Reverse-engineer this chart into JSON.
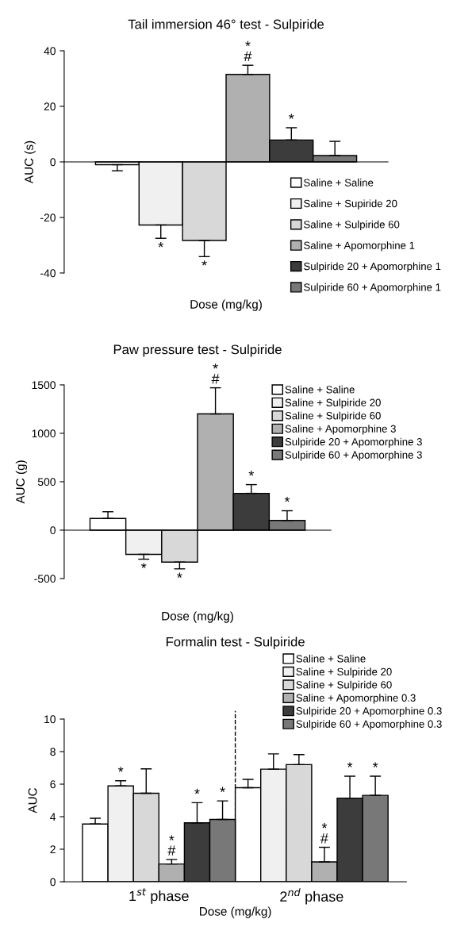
{
  "chart_data": [
    {
      "type": "bar",
      "title": "Tail immersion 46° test - Sulpiride",
      "xlabel": "Dose (mg/kg)",
      "ylabel": "AUC (s)",
      "categories": [
        null
      ],
      "ylim": [
        -40,
        40
      ],
      "yticks": [
        -40,
        -20,
        0,
        20,
        40
      ],
      "legend": "right",
      "series": [
        {
          "name": "Saline + Saline",
          "color": "#ffffff",
          "values": [
            -1.0
          ],
          "errors": [
            [
              -3.2,
              -1.0
            ]
          ],
          "value_labels": [
            null
          ]
        },
        {
          "name": "Saline + Supiride 20",
          "color": "#f0f0f0",
          "values": [
            -22.7
          ],
          "errors": [
            [
              -27.5,
              -22.7
            ]
          ],
          "value_labels": [
            "*"
          ]
        },
        {
          "name": "Saline + Sulpiride 60",
          "color": "#d8d8d8",
          "values": [
            -28.3
          ],
          "errors": [
            [
              -34.1,
              -28.3
            ]
          ],
          "value_labels": [
            "*"
          ]
        },
        {
          "name": "Saline + Apomorphine 1",
          "color": "#b0b0b0",
          "values": [
            31.5
          ],
          "errors": [
            [
              31.5,
              34.8
            ]
          ],
          "value_labels": [
            "*\n#"
          ]
        },
        {
          "name": "Sulpiride 20 + Apomorphine 1",
          "color": "#3c3c3c",
          "values": [
            7.9
          ],
          "errors": [
            [
              7.9,
              12.3
            ]
          ],
          "value_labels": [
            "*"
          ]
        },
        {
          "name": "Sulpiride 60 + Apomorphine 1",
          "color": "#787878",
          "values": [
            2.3
          ],
          "errors": [
            [
              2.3,
              7.4
            ]
          ],
          "value_labels": [
            null
          ]
        }
      ]
    },
    {
      "type": "bar",
      "title": "Paw pressure test - Sulpiride",
      "xlabel": "Dose (mg/kg)",
      "ylabel": "AUC (g)",
      "categories": [
        null
      ],
      "ylim": [
        -500,
        1500
      ],
      "yticks": [
        -500,
        0,
        500,
        1000,
        1500
      ],
      "legend": "top right",
      "series": [
        {
          "name": "Saline + Saline",
          "color": "#ffffff",
          "values": [
            120
          ],
          "errors": [
            [
              120,
              190
            ]
          ],
          "value_labels": [
            null
          ]
        },
        {
          "name": "Saline + Sulpiride 20",
          "color": "#f0f0f0",
          "values": [
            -250
          ],
          "errors": [
            [
              -300,
              -250
            ]
          ],
          "value_labels": [
            "*"
          ]
        },
        {
          "name": "Saline + Sulpiride 60",
          "color": "#d8d8d8",
          "values": [
            -330
          ],
          "errors": [
            [
              -400,
              -330
            ]
          ],
          "value_labels": [
            "*"
          ]
        },
        {
          "name": "Saline + Apomorphine 3",
          "color": "#b0b0b0",
          "values": [
            1200
          ],
          "errors": [
            [
              1200,
              1470
            ]
          ],
          "value_labels": [
            "*\n#"
          ]
        },
        {
          "name": "Sulpiride 20 + Apomorphine 3",
          "color": "#3c3c3c",
          "values": [
            380
          ],
          "errors": [
            [
              380,
              470
            ]
          ],
          "value_labels": [
            "*"
          ]
        },
        {
          "name": "Sulpiride 60 + Apomorphine 3",
          "color": "#787878",
          "values": [
            100
          ],
          "errors": [
            [
              100,
              200
            ]
          ],
          "value_labels": [
            "*"
          ]
        }
      ]
    },
    {
      "type": "bar",
      "title": "Formalin test - Sulpiride",
      "xlabel": "Dose (mg/kg)",
      "ylabel": "AUC",
      "categories": [
        "1$^{st}$ phase",
        "2$^{nd}$ phase"
      ],
      "ylim": [
        0,
        10
      ],
      "yticks": [
        0,
        2,
        4,
        6,
        8,
        10
      ],
      "legend": "top right",
      "series": [
        {
          "name": "Saline + Saline",
          "color": "#ffffff",
          "values": [
            3.55,
            5.78
          ],
          "errors": [
            [
              3.55,
              3.9
            ],
            [
              5.78,
              6.29
            ]
          ],
          "value_labels": [
            null,
            null
          ]
        },
        {
          "name": "Saline + Sulpiride 20",
          "color": "#f0f0f0",
          "values": [
            5.89,
            6.92
          ],
          "errors": [
            [
              5.89,
              6.21
            ],
            [
              6.92,
              7.86
            ]
          ],
          "value_labels": [
            "*",
            null
          ]
        },
        {
          "name": "Saline + Sulpiride 60",
          "color": "#d8d8d8",
          "values": [
            5.44,
            7.2
          ],
          "errors": [
            [
              5.44,
              6.94
            ],
            [
              7.2,
              7.82
            ]
          ],
          "value_labels": [
            null,
            null
          ]
        },
        {
          "name": "Saline + Apomorphine 0.3",
          "color": "#b0b0b0",
          "values": [
            1.09,
            1.22
          ],
          "errors": [
            [
              1.09,
              1.37
            ],
            [
              1.22,
              2.12
            ]
          ],
          "value_labels": [
            "*\n#",
            "*\n#"
          ]
        },
        {
          "name": "Sulpiride 20 + Apomorphine 0.3",
          "color": "#3c3c3c",
          "values": [
            3.62,
            5.14
          ],
          "errors": [
            [
              3.62,
              4.86
            ],
            [
              5.14,
              6.49
            ]
          ],
          "value_labels": [
            "*",
            "*"
          ]
        },
        {
          "name": "Sulpiride 60 + Apomorphine 0.3",
          "color": "#787878",
          "values": [
            3.83,
            5.31
          ],
          "errors": [
            [
              3.83,
              4.97
            ],
            [
              5.31,
              6.49
            ]
          ],
          "value_labels": [
            "*",
            "*"
          ]
        }
      ]
    }
  ]
}
